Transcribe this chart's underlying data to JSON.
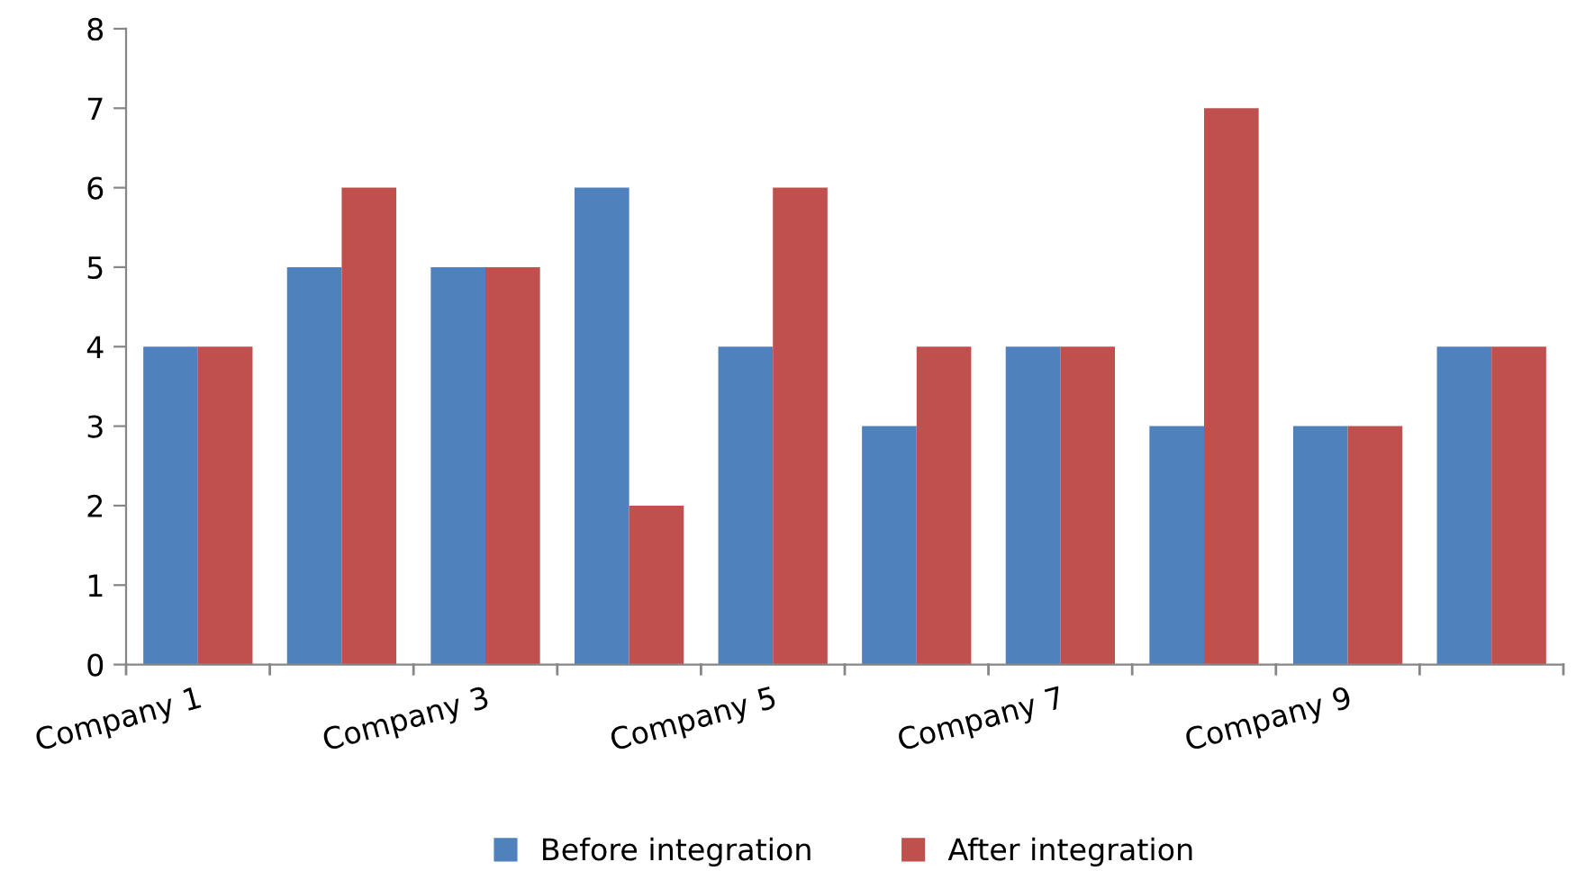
{
  "chart_data": {
    "type": "bar",
    "categories": [
      "Company 1",
      null,
      "Company 3",
      null,
      "Company 5",
      null,
      "Company 7",
      null,
      "Company 9",
      null
    ],
    "series": [
      {
        "name": "Before integration",
        "color": "#4f81bd",
        "values": [
          4,
          5,
          5,
          6,
          4,
          3,
          4,
          3,
          3,
          4
        ]
      },
      {
        "name": "After integration",
        "color": "#c0504d",
        "values": [
          4,
          6,
          5,
          2,
          6,
          4,
          4,
          7,
          3,
          4
        ]
      }
    ],
    "ylim": [
      0,
      8
    ],
    "yticks": [
      0,
      1,
      2,
      3,
      4,
      5,
      6,
      7,
      8
    ],
    "grid": false,
    "legend": "bottom"
  }
}
